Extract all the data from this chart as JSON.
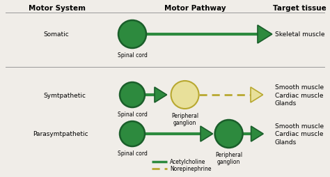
{
  "bg_color": "#f0ede8",
  "green_dark": "#1a5e2a",
  "green_fill": "#2d8a3e",
  "yellow_fill": "#e8e09a",
  "yellow_border": "#b8a830",
  "header_motor_system": "Motor System",
  "header_motor_pathway": "Motor Pathway",
  "header_target_tissue": "Target tissue",
  "row1_label": "Somatic",
  "row2_label": "Symtpathetic",
  "row3_label": "Parasymtpathetic",
  "row1_target": "Skeletal muscle",
  "row23_target": "Smooth muscle\nCardiac muscle\nGlands",
  "spinal_cord": "Spinal cord",
  "peripheral_ganglion": "Peripheral\nganglion",
  "legend_acetylcholine": "Acetylcholine",
  "legend_norepinephrine": "Norepinephrine",
  "font_size_header": 7.5,
  "font_size_label": 6.5,
  "font_size_small": 5.5
}
